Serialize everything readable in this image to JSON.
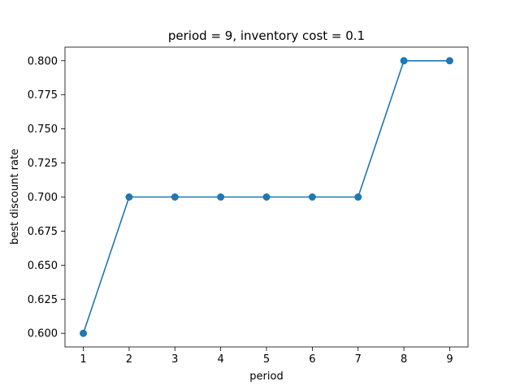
{
  "chart_data": {
    "type": "line",
    "title": "period = 9, inventory cost = 0.1",
    "xlabel": "period",
    "ylabel": "best discount rate",
    "x": [
      1,
      2,
      3,
      4,
      5,
      6,
      7,
      8,
      9
    ],
    "xticks": [
      "1",
      "2",
      "3",
      "4",
      "5",
      "6",
      "7",
      "8",
      "9"
    ],
    "yticks": [
      "0.600",
      "0.625",
      "0.650",
      "0.675",
      "0.700",
      "0.725",
      "0.750",
      "0.775",
      "0.800"
    ],
    "xlim": [
      0.6,
      9.4
    ],
    "ylim": [
      0.59,
      0.81
    ],
    "grid": false,
    "series": [
      {
        "values": [
          0.6,
          0.7,
          0.7,
          0.7,
          0.7,
          0.7,
          0.7,
          0.8,
          0.8
        ],
        "color": "#1f77b4",
        "marker": "circle"
      }
    ]
  }
}
